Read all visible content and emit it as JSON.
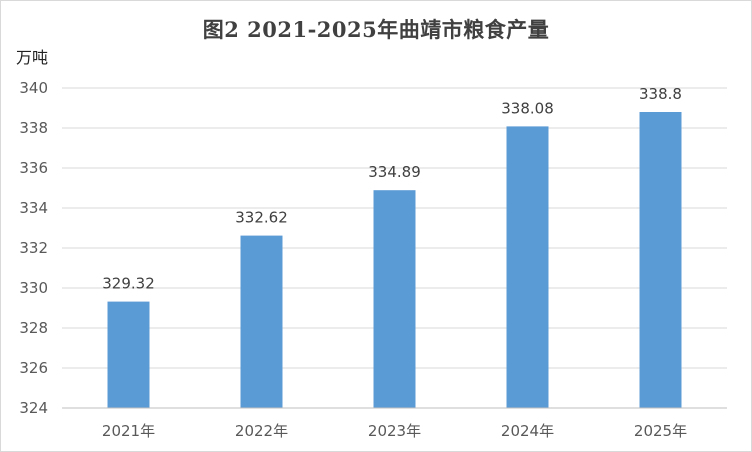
{
  "chart_data": {
    "type": "bar",
    "title": "图2   2021-2025年曲靖市粮食产量",
    "ylabel": "万吨",
    "xlabel": "",
    "categories": [
      "2021年",
      "2022年",
      "2023年",
      "2024年",
      "2025年"
    ],
    "values": [
      329.32,
      332.62,
      334.89,
      338.08,
      338.8
    ],
    "data_labels": [
      "329.32",
      "332.62",
      "334.89",
      "338.08",
      "338.8"
    ],
    "ylim": [
      324,
      340
    ],
    "yticks": [
      "324",
      "326",
      "328",
      "330",
      "332",
      "334",
      "336",
      "338",
      "340"
    ],
    "grid": true,
    "legend": "none",
    "bar_color": "#5b9bd5"
  }
}
